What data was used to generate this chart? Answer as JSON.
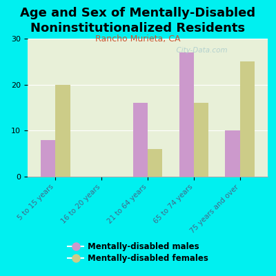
{
  "title": "Age and Sex of Mentally-Disabled\nNoninstitutionalized Residents",
  "subtitle": "Rancho Murieta, CA",
  "categories": [
    "5 to 15 years",
    "16 to 20 years",
    "21 to 64 years",
    "65 to 74 years",
    "75 years and over"
  ],
  "males": [
    8,
    0,
    16,
    27,
    10
  ],
  "females": [
    20,
    0,
    6,
    16,
    25
  ],
  "male_color": "#cc99cc",
  "female_color": "#cccc88",
  "background_color": "#00f0f0",
  "plot_bg_top": "#e8f0d8",
  "plot_bg_bottom": "#d8e8c8",
  "ylim": [
    0,
    30
  ],
  "yticks": [
    0,
    10,
    20,
    30
  ],
  "bar_width": 0.32,
  "title_fontsize": 13,
  "subtitle_fontsize": 9,
  "subtitle_color": "#cc5533",
  "tick_label_color": "#446688",
  "watermark": "  City-Data.com"
}
